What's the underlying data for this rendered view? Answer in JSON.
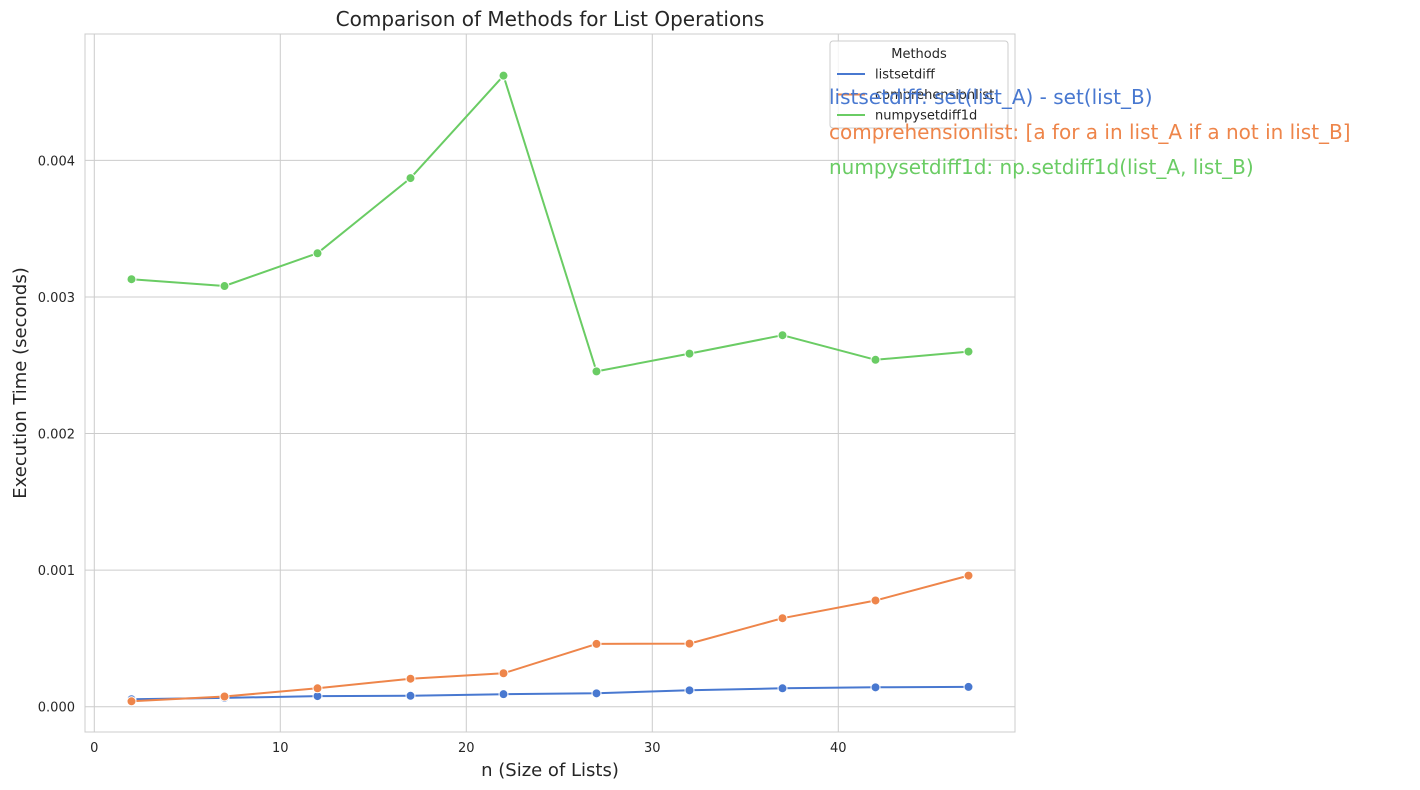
{
  "chart_data": {
    "type": "line",
    "title": "Comparison of Methods for List Operations",
    "xlabel": "n (Size of Lists)",
    "ylabel": "Execution Time (seconds)",
    "xlim": [
      -0.5,
      49.5
    ],
    "ylim": [
      -0.000185,
      0.004925
    ],
    "xticks": [
      0,
      10,
      20,
      30,
      40
    ],
    "xtick_labels": [
      "0",
      "10",
      "20",
      "30",
      "40"
    ],
    "yticks": [
      0,
      0.001,
      0.002,
      0.003,
      0.004
    ],
    "ytick_labels": [
      "0.000",
      "0.001",
      "0.002",
      "0.003",
      "0.004"
    ],
    "grid": true,
    "legend": {
      "title": "Methods",
      "placement": "upper right"
    },
    "x": [
      2,
      7,
      12,
      17,
      22,
      27,
      32,
      37,
      42,
      47
    ],
    "series": [
      {
        "name": "listsetdiff",
        "color": "#4878d0",
        "values": [
          5.5e-05,
          6.5e-05,
          7.8e-05,
          8e-05,
          9.2e-05,
          9.8e-05,
          0.00012,
          0.000135,
          0.000142,
          0.000145
        ]
      },
      {
        "name": "comprehensionlist",
        "color": "#ee854a",
        "values": [
          4e-05,
          7.5e-05,
          0.000135,
          0.000205,
          0.000245,
          0.00046,
          0.000462,
          0.000648,
          0.000778,
          0.00096
        ]
      },
      {
        "name": "numpysetdiff1d",
        "color": "#6acc64",
        "values": [
          0.00313,
          0.00308,
          0.00332,
          0.00387,
          0.00462,
          0.002455,
          0.002585,
          0.00272,
          0.00254,
          0.0026
        ]
      }
    ],
    "annotations": [
      {
        "text": "listsetdiff: set(list_A) - set(list_B)",
        "color": "#4878d0"
      },
      {
        "text": "comprehensionlist: [a for a in list_A if a not in list_B]",
        "color": "#ee854a"
      },
      {
        "text": "numpysetdiff1d: np.setdiff1d(list_A, list_B)",
        "color": "#6acc64"
      }
    ]
  }
}
